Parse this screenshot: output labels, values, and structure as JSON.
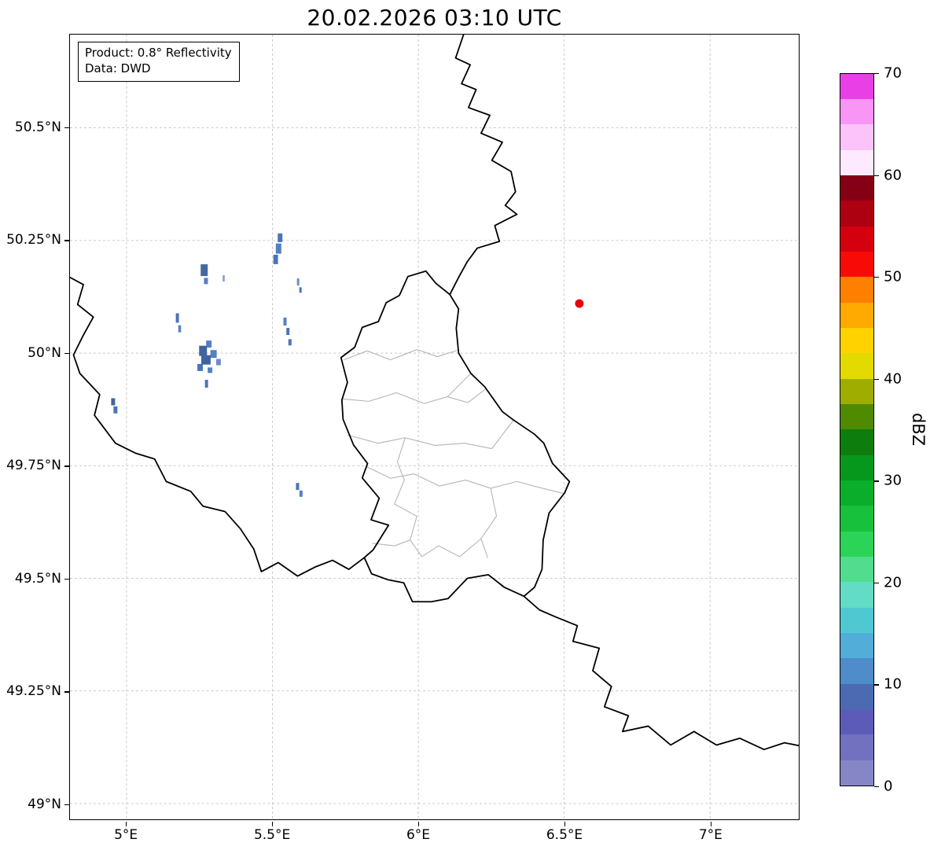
{
  "title": "20.02.2026 03:10 UTC",
  "info_box": {
    "line1": "Product: 0.8° Reflectivity",
    "line2": "Data: DWD"
  },
  "axes": {
    "lon_min": 4.806,
    "lon_max": 7.304,
    "lat_min": 48.965,
    "lat_max": 50.707,
    "x_ticks": [
      {
        "lon": 5.0,
        "label": "5°E"
      },
      {
        "lon": 5.5,
        "label": "5.5°E"
      },
      {
        "lon": 6.0,
        "label": "6°E"
      },
      {
        "lon": 6.5,
        "label": "6.5°E"
      },
      {
        "lon": 7.0,
        "label": "7°E"
      }
    ],
    "y_ticks": [
      {
        "lat": 49.0,
        "label": "49°N"
      },
      {
        "lat": 49.25,
        "label": "49.25°N"
      },
      {
        "lat": 49.5,
        "label": "49.5°N"
      },
      {
        "lat": 49.75,
        "label": "49.75°N"
      },
      {
        "lat": 50.0,
        "label": "50°N"
      },
      {
        "lat": 50.25,
        "label": "50.25°N"
      },
      {
        "lat": 50.5,
        "label": "50.5°N"
      }
    ]
  },
  "colorbar": {
    "label": "dBZ",
    "vmin": 0,
    "vmax": 70,
    "ticks": [
      0,
      10,
      20,
      30,
      40,
      50,
      60,
      70
    ],
    "colors": [
      "#8686c6",
      "#7171bf",
      "#5c5cb8",
      "#4b6ab2",
      "#4e8cca",
      "#52aed8",
      "#50c8d2",
      "#62dcc4",
      "#52dd8e",
      "#2bd357",
      "#18c13c",
      "#0aae2a",
      "#05981c",
      "#0d7d0d",
      "#4f8a00",
      "#9ead00",
      "#e3da00",
      "#ffd200",
      "#ffaa00",
      "#ff7f00",
      "#f80b06",
      "#d4000d",
      "#ad0011",
      "#850014",
      "#feeafe",
      "#fcc3fb",
      "#f995f5",
      "#e93fe6"
    ]
  },
  "map": {
    "country_borders": [
      {
        "name": "belgium-germany",
        "points": [
          [
            6.155,
            50.707
          ],
          [
            6.128,
            50.655
          ],
          [
            6.178,
            50.64
          ],
          [
            6.148,
            50.598
          ],
          [
            6.198,
            50.585
          ],
          [
            6.172,
            50.545
          ],
          [
            6.245,
            50.528
          ],
          [
            6.215,
            50.488
          ],
          [
            6.288,
            50.468
          ],
          [
            6.252,
            50.428
          ],
          [
            6.318,
            50.403
          ],
          [
            6.333,
            50.358
          ],
          [
            6.298,
            50.328
          ],
          [
            6.338,
            50.308
          ],
          [
            6.262,
            50.283
          ],
          [
            6.278,
            50.248
          ],
          [
            6.202,
            50.233
          ],
          [
            6.168,
            50.203
          ],
          [
            6.138,
            50.168
          ],
          [
            6.108,
            50.13
          ]
        ]
      },
      {
        "name": "luxembourg",
        "points": [
          [
            6.026,
            50.182
          ],
          [
            5.964,
            50.17
          ],
          [
            5.935,
            50.128
          ],
          [
            5.89,
            50.112
          ],
          [
            5.863,
            50.07
          ],
          [
            5.808,
            50.057
          ],
          [
            5.782,
            50.013
          ],
          [
            5.735,
            49.99
          ],
          [
            5.757,
            49.935
          ],
          [
            5.738,
            49.896
          ],
          [
            5.742,
            49.853
          ],
          [
            5.778,
            49.796
          ],
          [
            5.826,
            49.755
          ],
          [
            5.808,
            49.723
          ],
          [
            5.866,
            49.678
          ],
          [
            5.838,
            49.63
          ],
          [
            5.898,
            49.618
          ],
          [
            5.845,
            49.563
          ],
          [
            5.815,
            49.546
          ],
          [
            5.84,
            49.51
          ],
          [
            5.895,
            49.497
          ],
          [
            5.95,
            49.49
          ],
          [
            5.98,
            49.448
          ],
          [
            6.045,
            49.448
          ],
          [
            6.102,
            49.455
          ],
          [
            6.168,
            49.5
          ],
          [
            6.24,
            49.508
          ],
          [
            6.295,
            49.48
          ],
          [
            6.362,
            49.46
          ],
          [
            6.398,
            49.48
          ],
          [
            6.424,
            49.52
          ],
          [
            6.428,
            49.585
          ],
          [
            6.448,
            49.645
          ],
          [
            6.502,
            49.69
          ],
          [
            6.518,
            49.715
          ],
          [
            6.46,
            49.755
          ],
          [
            6.43,
            49.8
          ],
          [
            6.398,
            49.82
          ],
          [
            6.325,
            49.852
          ],
          [
            6.288,
            49.87
          ],
          [
            6.228,
            49.925
          ],
          [
            6.18,
            49.955
          ],
          [
            6.138,
            50.0
          ],
          [
            6.13,
            50.055
          ],
          [
            6.138,
            50.098
          ],
          [
            6.108,
            50.13
          ],
          [
            6.06,
            50.155
          ],
          [
            6.026,
            50.182
          ]
        ]
      },
      {
        "name": "belgium-france",
        "points": [
          [
            4.806,
            50.168
          ],
          [
            4.852,
            50.152
          ],
          [
            4.832,
            50.108
          ],
          [
            4.886,
            50.08
          ],
          [
            4.852,
            50.04
          ],
          [
            4.818,
            49.996
          ],
          [
            4.84,
            49.955
          ],
          [
            4.908,
            49.908
          ],
          [
            4.89,
            49.862
          ],
          [
            4.962,
            49.8
          ],
          [
            5.03,
            49.778
          ],
          [
            5.096,
            49.765
          ],
          [
            5.136,
            49.715
          ],
          [
            5.22,
            49.693
          ],
          [
            5.262,
            49.66
          ],
          [
            5.338,
            49.648
          ],
          [
            5.39,
            49.61
          ],
          [
            5.436,
            49.565
          ],
          [
            5.462,
            49.515
          ],
          [
            5.52,
            49.535
          ],
          [
            5.586,
            49.505
          ],
          [
            5.646,
            49.525
          ],
          [
            5.706,
            49.54
          ],
          [
            5.762,
            49.52
          ],
          [
            5.815,
            49.546
          ]
        ]
      },
      {
        "name": "france-germany",
        "points": [
          [
            6.362,
            49.46
          ],
          [
            6.415,
            49.43
          ],
          [
            6.468,
            49.415
          ],
          [
            6.545,
            49.395
          ],
          [
            6.53,
            49.36
          ],
          [
            6.62,
            49.345
          ],
          [
            6.598,
            49.295
          ],
          [
            6.662,
            49.26
          ],
          [
            6.638,
            49.215
          ],
          [
            6.72,
            49.195
          ],
          [
            6.7,
            49.16
          ],
          [
            6.788,
            49.172
          ],
          [
            6.865,
            49.13
          ],
          [
            6.945,
            49.16
          ],
          [
            7.022,
            49.13
          ],
          [
            7.102,
            49.145
          ],
          [
            7.185,
            49.12
          ],
          [
            7.255,
            49.135
          ],
          [
            7.31,
            49.128
          ]
        ]
      }
    ],
    "canton_borders": [
      [
        [
          5.745,
          49.985
        ],
        [
          5.825,
          50.005
        ],
        [
          5.905,
          49.985
        ],
        [
          5.995,
          50.008
        ],
        [
          6.065,
          49.992
        ],
        [
          6.133,
          50.006
        ]
      ],
      [
        [
          5.742,
          49.898
        ],
        [
          5.83,
          49.893
        ],
        [
          5.925,
          49.912
        ],
        [
          6.02,
          49.888
        ],
        [
          6.1,
          49.903
        ],
        [
          6.18,
          49.955
        ]
      ],
      [
        [
          6.1,
          49.903
        ],
        [
          6.17,
          49.89
        ],
        [
          6.23,
          49.92
        ]
      ],
      [
        [
          5.758,
          49.818
        ],
        [
          5.862,
          49.8
        ],
        [
          5.955,
          49.812
        ],
        [
          6.058,
          49.795
        ],
        [
          6.158,
          49.8
        ],
        [
          6.252,
          49.788
        ],
        [
          6.325,
          49.85
        ]
      ],
      [
        [
          5.955,
          49.812
        ],
        [
          5.928,
          49.758
        ],
        [
          5.952,
          49.718
        ],
        [
          5.918,
          49.665
        ]
      ],
      [
        [
          5.822,
          49.748
        ],
        [
          5.905,
          49.722
        ],
        [
          5.985,
          49.732
        ],
        [
          6.072,
          49.705
        ],
        [
          6.162,
          49.718
        ],
        [
          6.248,
          49.7
        ],
        [
          6.338,
          49.715
        ],
        [
          6.425,
          49.7
        ],
        [
          6.5,
          49.688
        ]
      ],
      [
        [
          6.248,
          49.7
        ],
        [
          6.268,
          49.638
        ],
        [
          6.215,
          49.588
        ],
        [
          6.238,
          49.545
        ]
      ],
      [
        [
          5.918,
          49.665
        ],
        [
          5.995,
          49.638
        ],
        [
          5.972,
          49.585
        ],
        [
          6.012,
          49.548
        ]
      ],
      [
        [
          5.842,
          49.578
        ],
        [
          5.918,
          49.572
        ],
        [
          5.972,
          49.585
        ]
      ],
      [
        [
          6.012,
          49.548
        ],
        [
          6.07,
          49.572
        ],
        [
          6.142,
          49.548
        ],
        [
          6.215,
          49.588
        ]
      ]
    ],
    "radar_marker": {
      "lon": 6.552,
      "lat": 50.11,
      "r": 5.5,
      "color": "#e8000b"
    },
    "echoes": [
      {
        "lon": 5.526,
        "lat": 50.256,
        "w": 6,
        "h": 11,
        "color": "#4a74b8"
      },
      {
        "lon": 5.521,
        "lat": 50.232,
        "w": 7,
        "h": 13,
        "color": "#5580c2"
      },
      {
        "lon": 5.511,
        "lat": 50.208,
        "w": 6,
        "h": 12,
        "color": "#4a74b8"
      },
      {
        "lon": 5.266,
        "lat": 50.184,
        "w": 9,
        "h": 15,
        "color": "#44699f"
      },
      {
        "lon": 5.272,
        "lat": 50.16,
        "w": 5,
        "h": 8,
        "color": "#5580c2"
      },
      {
        "lon": 5.333,
        "lat": 50.166,
        "w": 2.5,
        "h": 8,
        "color": "#7d9bcf"
      },
      {
        "lon": 5.588,
        "lat": 50.158,
        "w": 3,
        "h": 9,
        "color": "#6b8cc6"
      },
      {
        "lon": 5.596,
        "lat": 50.14,
        "w": 3,
        "h": 7,
        "color": "#4a74b8"
      },
      {
        "lon": 5.174,
        "lat": 50.078,
        "w": 4,
        "h": 12,
        "color": "#4a74b8"
      },
      {
        "lon": 5.182,
        "lat": 50.054,
        "w": 3.5,
        "h": 9,
        "color": "#5580c2"
      },
      {
        "lon": 5.543,
        "lat": 50.07,
        "w": 4,
        "h": 10,
        "color": "#5580c2"
      },
      {
        "lon": 5.553,
        "lat": 50.048,
        "w": 4,
        "h": 9,
        "color": "#4a74b8"
      },
      {
        "lon": 5.56,
        "lat": 50.024,
        "w": 4,
        "h": 8,
        "color": "#4a74b8"
      },
      {
        "lon": 5.282,
        "lat": 50.02,
        "w": 7,
        "h": 9,
        "color": "#5580c2"
      },
      {
        "lon": 5.262,
        "lat": 50.005,
        "w": 10,
        "h": 13,
        "color": "#40649e"
      },
      {
        "lon": 5.298,
        "lat": 49.998,
        "w": 8,
        "h": 10,
        "color": "#5580c2"
      },
      {
        "lon": 5.272,
        "lat": 49.985,
        "w": 12,
        "h": 12,
        "color": "#40649e"
      },
      {
        "lon": 5.315,
        "lat": 49.98,
        "w": 6,
        "h": 8,
        "color": "#6b8cc6"
      },
      {
        "lon": 5.252,
        "lat": 49.968,
        "w": 7,
        "h": 9,
        "color": "#4a74b8"
      },
      {
        "lon": 5.286,
        "lat": 49.962,
        "w": 6,
        "h": 7,
        "color": "#5580c2"
      },
      {
        "lon": 5.274,
        "lat": 49.932,
        "w": 4,
        "h": 10,
        "color": "#4a74b8"
      },
      {
        "lon": 4.954,
        "lat": 49.892,
        "w": 5,
        "h": 9,
        "color": "#40649e"
      },
      {
        "lon": 4.962,
        "lat": 49.874,
        "w": 5,
        "h": 9,
        "color": "#4a74b8"
      },
      {
        "lon": 5.586,
        "lat": 49.704,
        "w": 4,
        "h": 9,
        "color": "#4a74b8"
      },
      {
        "lon": 5.598,
        "lat": 49.688,
        "w": 4,
        "h": 8,
        "color": "#5580c2"
      }
    ]
  }
}
